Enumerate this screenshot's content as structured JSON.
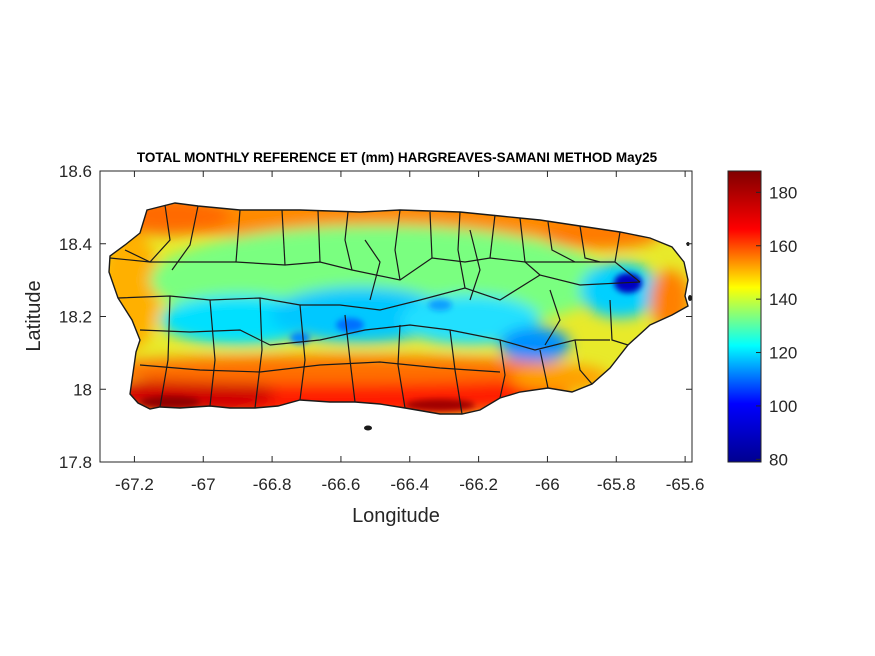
{
  "chart_data": {
    "type": "heatmap",
    "title": "TOTAL MONTHLY REFERENCE ET (mm) HARGREAVES-SAMANI METHOD May25",
    "xlabel": "Longitude",
    "ylabel": "Latitude",
    "xlim": [
      -67.3,
      -65.58
    ],
    "ylim": [
      17.8,
      18.6
    ],
    "xticks": [
      -67.2,
      -67,
      -66.8,
      -66.6,
      -66.4,
      -66.2,
      -66,
      -65.8,
      -65.6
    ],
    "yticks": [
      17.8,
      18,
      18.2,
      18.4,
      18.6
    ],
    "xtick_labels": [
      "-67.2",
      "-67",
      "-66.8",
      "-66.6",
      "-66.4",
      "-66.2",
      "-66",
      "-65.8",
      "-65.6"
    ],
    "ytick_labels": [
      "17.8",
      "18",
      "18.2",
      "18.4",
      "18.6"
    ],
    "colorbar": {
      "colormap": "jet",
      "range": [
        79,
        188
      ],
      "ticks": [
        80,
        100,
        120,
        140,
        160,
        180
      ],
      "tick_labels": [
        "80",
        "100",
        "120",
        "140",
        "160",
        "180"
      ]
    },
    "colormap_stops": [
      "#00008f",
      "#0000ff",
      "#00ffff",
      "#ffff00",
      "#ff0000",
      "#800000"
    ],
    "field_summary": {
      "south_coast_mm": 185,
      "north_coast_mm": 162,
      "west_coast_mm": 150,
      "central_mountains_mm": 115,
      "el_yunque_minimum_mm": 82,
      "east_coast_mm": 168
    },
    "grid": false,
    "region": "Puerto Rico"
  }
}
